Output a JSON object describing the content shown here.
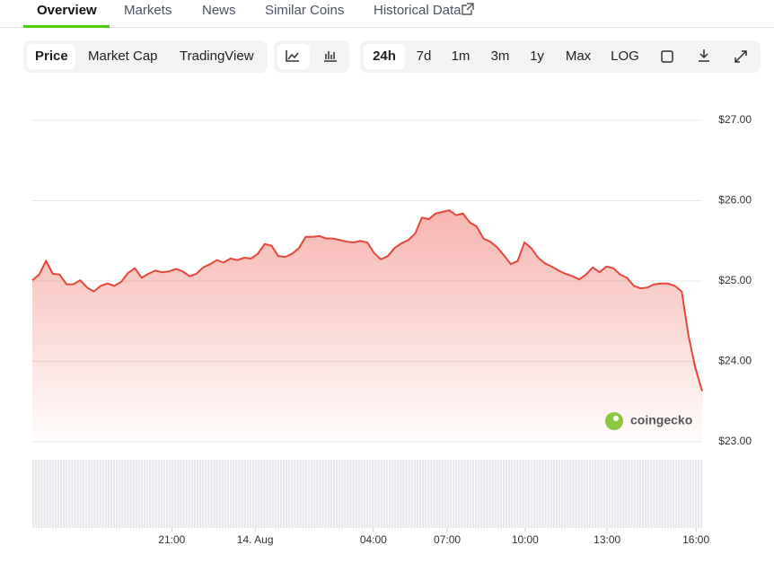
{
  "tabs": [
    "Overview",
    "Markets",
    "News",
    "Similar Coins",
    "Historical Data"
  ],
  "chart_views": [
    "Price",
    "Market Cap",
    "TradingView"
  ],
  "ranges": [
    "24h",
    "7d",
    "1m",
    "3m",
    "1y",
    "Max",
    "LOG"
  ],
  "watermark": "coingecko",
  "chart_data": {
    "type": "line",
    "color": "#e5473c",
    "grid": true,
    "values": [
      25.01,
      25.08,
      25.25,
      25.09,
      25.08,
      24.96,
      24.96,
      25.01,
      24.92,
      24.87,
      24.94,
      24.97,
      24.94,
      24.99,
      25.1,
      25.16,
      25.04,
      25.09,
      25.13,
      25.11,
      25.12,
      25.15,
      25.12,
      25.06,
      25.09,
      25.17,
      25.21,
      25.26,
      25.23,
      25.28,
      25.26,
      25.29,
      25.28,
      25.34,
      25.46,
      25.44,
      25.31,
      25.3,
      25.34,
      25.41,
      25.55,
      25.55,
      25.56,
      25.53,
      25.53,
      25.51,
      25.49,
      25.48,
      25.5,
      25.48,
      25.35,
      25.27,
      25.31,
      25.41,
      25.47,
      25.51,
      25.59,
      25.79,
      25.77,
      25.84,
      25.86,
      25.88,
      25.82,
      25.84,
      25.73,
      25.68,
      25.53,
      25.49,
      25.42,
      25.32,
      25.21,
      25.25,
      25.48,
      25.41,
      25.29,
      25.22,
      25.18,
      25.13,
      25.09,
      25.06,
      25.02,
      25.08,
      25.17,
      25.11,
      25.18,
      25.16,
      25.08,
      25.04,
      24.94,
      24.91,
      24.92,
      24.96,
      24.97,
      24.97,
      24.94,
      24.87,
      24.32,
      23.92,
      23.63
    ],
    "xlim": [
      0,
      98
    ],
    "xticks": [
      {
        "value": 20.4,
        "label": "21:00"
      },
      {
        "value": 32.6,
        "label": "14. Aug"
      },
      {
        "value": 49.9,
        "label": "04:00"
      },
      {
        "value": 60.7,
        "label": "07:00"
      },
      {
        "value": 72.1,
        "label": "10:00"
      },
      {
        "value": 84.1,
        "label": "13:00"
      },
      {
        "value": 97.1,
        "label": "16:00"
      }
    ],
    "ylim": [
      23,
      27
    ],
    "yticks": [
      {
        "value": 23,
        "label": "$23.00"
      },
      {
        "value": 24,
        "label": "$24.00"
      },
      {
        "value": 25,
        "label": "$25.00"
      },
      {
        "value": 26,
        "label": "$26.00"
      },
      {
        "value": 27,
        "label": "$27.00"
      }
    ]
  }
}
